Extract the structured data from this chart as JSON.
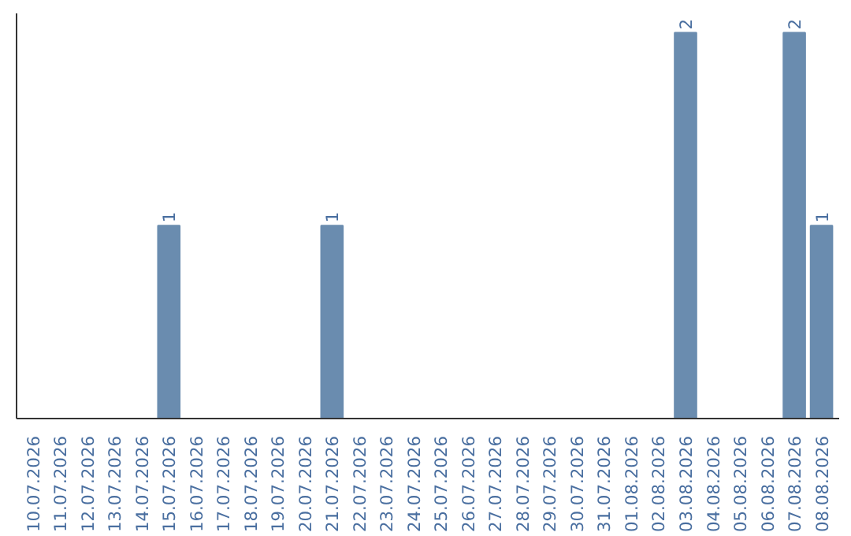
{
  "chart_data": {
    "type": "bar",
    "categories": [
      "10.07.2026",
      "11.07.2026",
      "12.07.2026",
      "13.07.2026",
      "14.07.2026",
      "15.07.2026",
      "16.07.2026",
      "17.07.2026",
      "18.07.2026",
      "19.07.2026",
      "20.07.2026",
      "21.07.2026",
      "22.07.2026",
      "23.07.2026",
      "24.07.2026",
      "25.07.2026",
      "26.07.2026",
      "27.07.2026",
      "28.07.2026",
      "29.07.2026",
      "30.07.2026",
      "31.07.2026",
      "01.08.2026",
      "02.08.2026",
      "03.08.2026",
      "04.08.2026",
      "05.08.2026",
      "06.08.2026",
      "07.08.2026",
      "08.08.2026"
    ],
    "values": [
      0,
      0,
      0,
      0,
      0,
      1,
      0,
      0,
      0,
      0,
      0,
      1,
      0,
      0,
      0,
      0,
      0,
      0,
      0,
      0,
      0,
      0,
      0,
      0,
      2,
      0,
      0,
      0,
      2,
      1
    ],
    "value_labels": [
      null,
      null,
      null,
      null,
      null,
      "1",
      null,
      null,
      null,
      null,
      null,
      "1",
      null,
      null,
      null,
      null,
      null,
      null,
      null,
      null,
      null,
      null,
      null,
      null,
      "2",
      null,
      null,
      null,
      "2",
      "1"
    ],
    "color": "#6a8caf",
    "grid": false
  }
}
